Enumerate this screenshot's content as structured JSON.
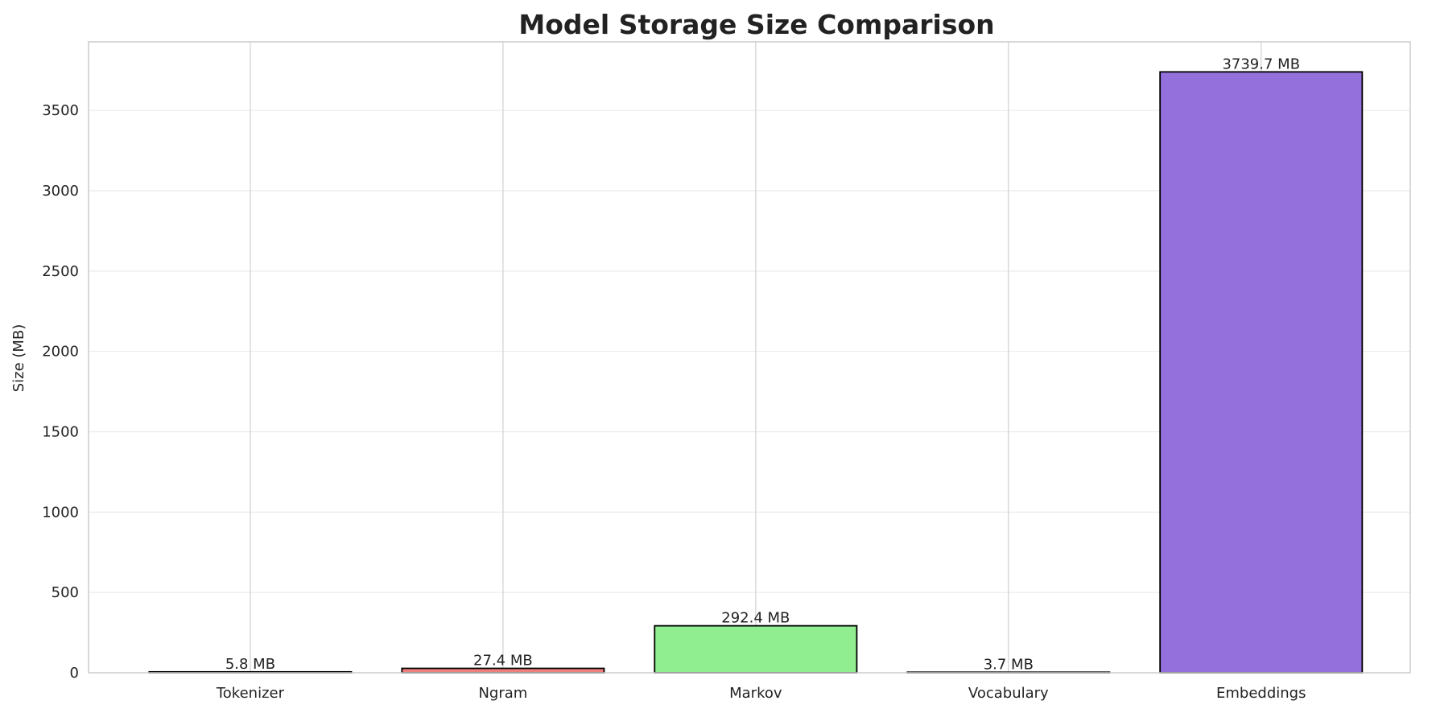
{
  "chart_data": {
    "type": "bar",
    "title": "Model Storage Size Comparison",
    "xlabel": "",
    "ylabel": "Size (MB)",
    "categories": [
      "Tokenizer",
      "Ngram",
      "Markov",
      "Vocabulary",
      "Embeddings"
    ],
    "values": [
      5.8,
      27.4,
      292.4,
      3.7,
      3739.7
    ],
    "data_labels": [
      "5.8 MB",
      "27.4 MB",
      "292.4 MB",
      "3.7 MB",
      "3739.7 MB"
    ],
    "colors": [
      "#87ceeb",
      "#f08080",
      "#90ee90",
      "#ffd700",
      "#9370db"
    ],
    "edge_color": "#000000",
    "ylim": [
      0,
      3926.7
    ],
    "yticks": [
      0,
      500,
      1000,
      1500,
      2000,
      2500,
      3000,
      3500
    ],
    "grid": true
  }
}
